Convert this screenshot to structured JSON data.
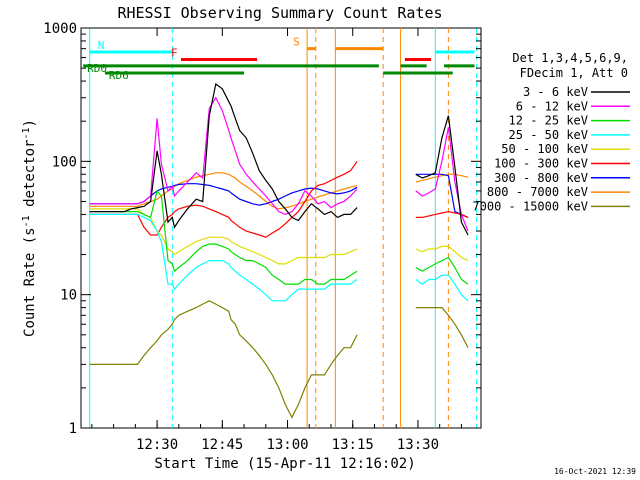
{
  "chart_data": {
    "type": "line",
    "title": "RHESSI Observing Summary Count Rates",
    "xlabel": "Start Time (15-Apr-11 12:16:02)",
    "ylabel": "Count Rate (s",
    "ylabel_sup": "-1",
    "ylabel_mid": " detector",
    "ylabel_tail": ")",
    "y_scale": "log",
    "ylim": [
      1,
      1000
    ],
    "xlim_minutes": [
      12.5,
      104.5
    ],
    "x_ticks": [
      {
        "label": "12:30",
        "m": 30
      },
      {
        "label": "12:45",
        "m": 45
      },
      {
        "label": "13:00",
        "m": 60
      },
      {
        "label": "13:15",
        "m": 75
      },
      {
        "label": "13:30",
        "m": 90
      },
      {
        "label": "13:45",
        "m": 105
      }
    ],
    "y_ticks": [
      {
        "label": "1",
        "v": 1
      },
      {
        "label": "10",
        "v": 10
      },
      {
        "label": "100",
        "v": 100
      },
      {
        "label": "1000",
        "v": 1000
      }
    ],
    "legend_position": "right",
    "legend_header": [
      "Det 1,3,4,5,6,9,",
      "FDecim 1, Att 0"
    ],
    "footer_date": "16-Oct-2021 12:39",
    "series": [
      {
        "name": "3 - 6 keV",
        "color": "#000000",
        "x": [
          14.5,
          16,
          17,
          18.5,
          20,
          21.5,
          22.5,
          24,
          25.5,
          27,
          28.5,
          30,
          31,
          32.5,
          33.5,
          34,
          35,
          37,
          39,
          40.5,
          42,
          43.5,
          45,
          46.5,
          47,
          48,
          49,
          50.5,
          52,
          53.5,
          55,
          56.5,
          58,
          59.5,
          61,
          62.5,
          64,
          65.5,
          67,
          68.5,
          70,
          71.5,
          73,
          74.5,
          76,
          88,
          89.5,
          91,
          92.5,
          94,
          95.5,
          97,
          98.5,
          100,
          101.5
        ],
        "y": [
          42,
          42,
          42,
          42,
          42,
          42,
          42,
          44,
          45,
          46,
          50,
          120,
          80,
          35,
          38,
          32,
          36,
          44,
          52,
          50,
          220,
          380,
          350,
          280,
          260,
          210,
          170,
          150,
          115,
          85,
          72,
          62,
          50,
          44,
          38,
          36,
          42,
          48,
          44,
          40,
          42,
          38,
          40,
          40,
          45,
          null,
          80,
          75,
          78,
          82,
          150,
          220,
          90,
          35,
          28
        ]
      },
      {
        "name": "6 - 12 keV",
        "color": "#ff00ff",
        "x": [
          14.5,
          16,
          17,
          18.5,
          20,
          21.5,
          22.5,
          24,
          25.5,
          27,
          28.5,
          30,
          31,
          32.5,
          33.5,
          34,
          35,
          37,
          39,
          40.5,
          42,
          43.5,
          45,
          46.5,
          47,
          48,
          49,
          50.5,
          52,
          53.5,
          55,
          56.5,
          58,
          59.5,
          61,
          62.5,
          64,
          65.5,
          67,
          68.5,
          70,
          71.5,
          73,
          74.5,
          76,
          88,
          89.5,
          91,
          92.5,
          94,
          95.5,
          97,
          98.5,
          100,
          101.5
        ],
        "y": [
          48,
          48,
          48,
          48,
          48,
          48,
          48,
          48,
          48,
          50,
          55,
          210,
          95,
          60,
          65,
          55,
          60,
          70,
          82,
          75,
          250,
          300,
          240,
          170,
          150,
          120,
          95,
          80,
          70,
          62,
          55,
          48,
          42,
          40,
          42,
          48,
          60,
          55,
          48,
          50,
          45,
          48,
          50,
          55,
          62,
          null,
          60,
          55,
          58,
          62,
          100,
          180,
          70,
          40,
          30
        ]
      },
      {
        "name": "12 - 25 keV",
        "color": "#00dd00",
        "x": [
          14.5,
          16,
          17,
          18.5,
          20,
          21.5,
          22.5,
          24,
          25.5,
          27,
          28.5,
          30,
          31,
          32.5,
          33.5,
          34,
          35,
          37,
          39,
          40.5,
          42,
          43.5,
          45,
          46.5,
          47,
          48,
          49,
          50.5,
          52,
          53.5,
          55,
          56.5,
          58,
          59.5,
          61,
          62.5,
          64,
          65.5,
          67,
          68.5,
          70,
          71.5,
          73,
          74.5,
          76,
          88,
          89.5,
          91,
          92.5,
          94,
          95.5,
          97,
          98.5,
          100,
          101.5
        ],
        "y": [
          42,
          42,
          42,
          42,
          42,
          42,
          42,
          42,
          42,
          40,
          38,
          60,
          55,
          18,
          17,
          15,
          16,
          18,
          21,
          23,
          24,
          24,
          23,
          22,
          21,
          20,
          19,
          18,
          18,
          17,
          16,
          14,
          13,
          12,
          12,
          12,
          13,
          13,
          12,
          12,
          13,
          13,
          13,
          14,
          15,
          null,
          16,
          15,
          16,
          17,
          18,
          19,
          16,
          13,
          12
        ]
      },
      {
        "name": "25 - 50 keV",
        "color": "#00ffff",
        "x": [
          14.5,
          16,
          17,
          18.5,
          20,
          21.5,
          22.5,
          24,
          25.5,
          27,
          28.5,
          30,
          31,
          32.5,
          33.5,
          34,
          35,
          37,
          39,
          40.5,
          42,
          43.5,
          45,
          46.5,
          47,
          48,
          49,
          50.5,
          52,
          53.5,
          55,
          56.5,
          58,
          59.5,
          61,
          62.5,
          64,
          65.5,
          67,
          68.5,
          70,
          71.5,
          73,
          74.5,
          76,
          88,
          89.5,
          91,
          92.5,
          94,
          95.5,
          97,
          98.5,
          100,
          101.5
        ],
        "y": [
          40,
          40,
          40,
          40,
          40,
          40,
          40,
          40,
          40,
          38,
          36,
          30,
          25,
          12,
          12,
          11,
          12,
          14,
          16,
          17,
          18,
          18,
          18,
          17,
          16,
          15,
          14,
          13,
          12,
          11,
          10,
          9,
          9,
          9,
          10,
          11,
          11,
          11,
          11,
          11,
          12,
          12,
          12,
          12,
          13,
          null,
          13,
          12,
          13,
          13,
          14,
          14,
          12,
          10,
          9
        ]
      },
      {
        "name": "50 - 100 keV",
        "color": "#dddd00",
        "x": [
          14.5,
          16,
          17,
          18.5,
          20,
          21.5,
          22.5,
          24,
          25.5,
          27,
          28.5,
          30,
          31,
          32.5,
          33.5,
          34,
          35,
          37,
          39,
          40.5,
          42,
          43.5,
          45,
          46.5,
          47,
          48,
          49,
          50.5,
          52,
          53.5,
          55,
          56.5,
          58,
          59.5,
          61,
          62.5,
          64,
          65.5,
          67,
          68.5,
          70,
          71.5,
          73,
          74.5,
          76,
          88,
          89.5,
          91,
          92.5,
          94,
          95.5,
          97,
          98.5,
          100,
          101.5
        ],
        "y": [
          44,
          44,
          44,
          44,
          44,
          44,
          44,
          44,
          44,
          40,
          38,
          30,
          28,
          22,
          21,
          20,
          21,
          23,
          25,
          26,
          27,
          27,
          27,
          26,
          25,
          24,
          23,
          22,
          21,
          20,
          19,
          18,
          17,
          17,
          18,
          19,
          19,
          19,
          19,
          19,
          20,
          20,
          20,
          21,
          22,
          null,
          22,
          21,
          22,
          22,
          23,
          23,
          21,
          19,
          18
        ]
      },
      {
        "name": "100 - 300 keV",
        "color": "#ff0000",
        "x": [
          14.5,
          16,
          17,
          18.5,
          20,
          21.5,
          22.5,
          24,
          25.5,
          27,
          28.5,
          30,
          31,
          32.5,
          33.5,
          34,
          35,
          37,
          39,
          40.5,
          42,
          43.5,
          45,
          46.5,
          47,
          48,
          49,
          50.5,
          52,
          53.5,
          55,
          56.5,
          58,
          59.5,
          61,
          62.5,
          64,
          65.5,
          67,
          68.5,
          70,
          71.5,
          73,
          74.5,
          76,
          88,
          89.5,
          91,
          92.5,
          94,
          95.5,
          97,
          98.5,
          100,
          101.5
        ],
        "y": [
          40,
          40,
          40,
          40,
          40,
          40,
          40,
          40,
          40,
          32,
          28,
          28,
          32,
          38,
          40,
          42,
          44,
          46,
          47,
          46,
          44,
          42,
          40,
          38,
          36,
          34,
          32,
          30,
          29,
          28,
          27,
          29,
          31,
          34,
          38,
          42,
          50,
          60,
          66,
          68,
          72,
          76,
          80,
          85,
          100,
          null,
          38,
          38,
          39,
          40,
          41,
          42,
          41,
          40,
          38
        ]
      },
      {
        "name": "300 - 800 keV",
        "color": "#0000ff",
        "x": [
          14.5,
          16,
          17,
          18.5,
          20,
          21.5,
          22.5,
          24,
          25.5,
          27,
          28.5,
          30,
          31,
          32.5,
          33.5,
          34,
          35,
          37,
          39,
          40.5,
          42,
          43.5,
          45,
          46.5,
          47,
          48,
          49,
          50.5,
          52,
          53.5,
          55,
          56.5,
          58,
          59.5,
          61,
          62.5,
          64,
          65.5,
          67,
          68.5,
          70,
          71.5,
          73,
          74.5,
          76,
          88,
          89.5,
          91,
          92.5,
          94,
          95.5,
          97,
          98.5,
          100,
          101.5
        ],
        "y": [
          48,
          48,
          48,
          48,
          48,
          48,
          48,
          48,
          48,
          50,
          55,
          60,
          62,
          64,
          65,
          66,
          67,
          68,
          68,
          67,
          66,
          64,
          62,
          60,
          58,
          55,
          52,
          50,
          48,
          47,
          48,
          50,
          52,
          55,
          58,
          60,
          62,
          63,
          62,
          60,
          58,
          57,
          58,
          60,
          64,
          null,
          80,
          80,
          80,
          80,
          80,
          78,
          42,
          40,
          38
        ]
      },
      {
        "name": "800 - 7000 keV",
        "color": "#ff8800",
        "x": [
          14.5,
          16,
          17,
          18.5,
          20,
          21.5,
          22.5,
          24,
          25.5,
          27,
          28.5,
          30,
          31,
          32.5,
          33.5,
          34,
          35,
          37,
          39,
          40.5,
          42,
          43.5,
          45,
          46.5,
          47,
          48,
          49,
          50.5,
          52,
          53.5,
          55,
          56.5,
          58,
          59.5,
          61,
          62.5,
          64,
          65.5,
          67,
          68.5,
          70,
          71.5,
          73,
          74.5,
          76,
          88,
          89.5,
          91,
          92.5,
          94,
          95.5,
          97,
          98.5,
          100,
          101.5
        ],
        "y": [
          46,
          46,
          46,
          46,
          46,
          46,
          46,
          46,
          46,
          48,
          50,
          52,
          55,
          60,
          62,
          65,
          68,
          72,
          76,
          78,
          80,
          82,
          82,
          80,
          78,
          75,
          70,
          65,
          60,
          55,
          50,
          46,
          44,
          45,
          46,
          48,
          50,
          52,
          54,
          56,
          58,
          60,
          62,
          64,
          66,
          null,
          70,
          72,
          74,
          76,
          78,
          80,
          80,
          78,
          76
        ]
      },
      {
        "name": "7000 - 15000 keV",
        "color": "#808000",
        "x": [
          14.5,
          16,
          17,
          18.5,
          20,
          21.5,
          22.5,
          24,
          25.5,
          27,
          28.5,
          30,
          31,
          32.5,
          33.5,
          34,
          35,
          37,
          39,
          40.5,
          42,
          43.5,
          45,
          46.5,
          47,
          48,
          49,
          50.5,
          52,
          53.5,
          55,
          56.5,
          58,
          59.5,
          61,
          62.5,
          64,
          65.5,
          67,
          68.5,
          70,
          71.5,
          73,
          74.5,
          76,
          88,
          89.5,
          91,
          92.5,
          94,
          95.5,
          97,
          98.5,
          100,
          101.5
        ],
        "y": [
          3,
          3,
          3,
          3,
          3,
          3,
          3,
          3,
          3,
          3.5,
          4,
          4.5,
          5,
          5.5,
          6,
          6.5,
          7,
          7.5,
          8,
          8.5,
          9,
          8.5,
          8,
          7.5,
          6.5,
          6,
          5,
          4.5,
          4,
          3.5,
          3,
          2.5,
          2,
          1.5,
          1.2,
          1.5,
          2,
          2.5,
          2.5,
          2.5,
          3,
          3.5,
          4,
          4,
          5,
          null,
          8,
          8,
          8,
          8,
          8,
          7,
          6,
          5,
          4
        ]
      }
    ],
    "state_bars": [
      {
        "label": "N",
        "color": "#00ffff",
        "y_level": 660,
        "segments": [
          [
            14.5,
            33.5
          ],
          [
            94,
            103
          ]
        ]
      },
      {
        "label": "F",
        "color": "#ff0000",
        "y_level": 580,
        "segments": [
          [
            35.5,
            53
          ],
          [
            87,
            93
          ]
        ]
      },
      {
        "label": "S",
        "color": "#ff8800",
        "y_level": 700,
        "segments": [
          [
            64.5,
            66.5
          ],
          [
            71,
            82
          ]
        ]
      },
      {
        "label": "RD0",
        "color": "#008800",
        "y_level": 520,
        "segments": [
          [
            13,
            51.5
          ],
          [
            51.5,
            81
          ],
          [
            86,
            92
          ],
          [
            96,
            103
          ]
        ]
      },
      {
        "label": "RD6",
        "color": "#008800",
        "y_level": 460,
        "segments": [
          [
            18,
            50
          ],
          [
            82,
            98
          ]
        ]
      }
    ],
    "vertical_markers": [
      {
        "m": 14.5,
        "color": "#00ffff",
        "style": "solid"
      },
      {
        "m": 33.5,
        "color": "#00ffff",
        "style": "dashed"
      },
      {
        "m": 94,
        "color": "#00ffff",
        "style": "solid"
      },
      {
        "m": 103.5,
        "color": "#00ffff",
        "style": "dashed"
      },
      {
        "m": 64.5,
        "color": "#ff8800",
        "style": "solid"
      },
      {
        "m": 66.5,
        "color": "#ff8800",
        "style": "dashed"
      },
      {
        "m": 71,
        "color": "#ff8800",
        "style": "solid"
      },
      {
        "m": 82,
        "color": "#ff8800",
        "style": "dashed"
      },
      {
        "m": 86,
        "color": "#ff8800",
        "style": "solid"
      },
      {
        "m": 97,
        "color": "#ff8800",
        "style": "dashed"
      }
    ]
  }
}
